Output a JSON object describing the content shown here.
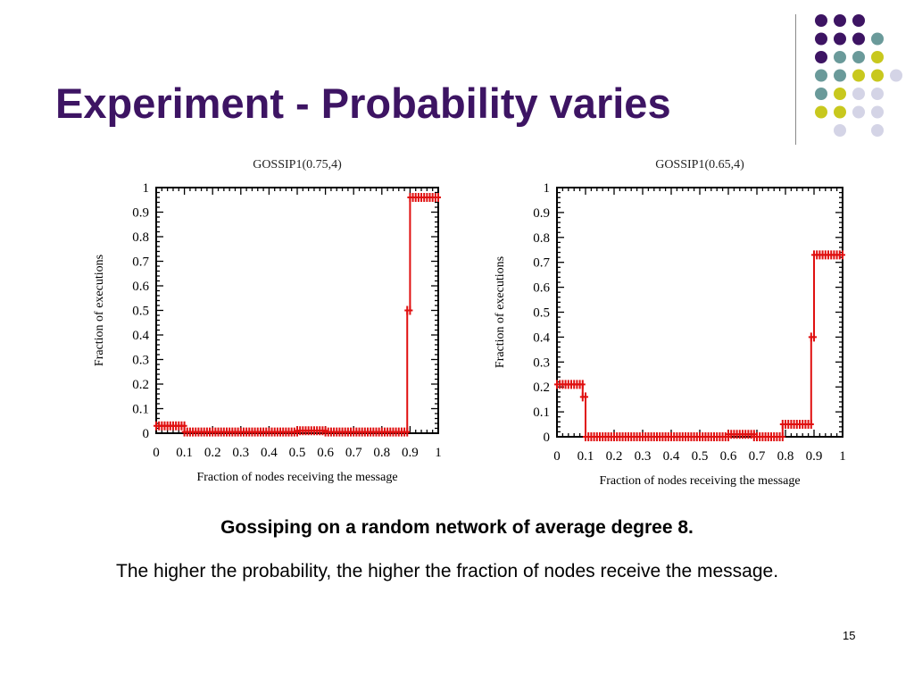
{
  "slide": {
    "title": "Experiment - Probability varies",
    "caption": "Gossiping on a random network of average degree 8.",
    "body": "The higher the probability, the higher the fraction of nodes receive the message.",
    "page_number": "15"
  },
  "colors": {
    "title": "#3d1463",
    "series": "#e01010",
    "dot_purple": "#3d1463",
    "dot_teal": "#6a9a9a",
    "dot_olive": "#c8c81e",
    "dot_lavender": "#d4d4e6"
  },
  "decoration": {
    "dot_grid": [
      [
        "purple",
        "purple",
        "purple",
        null
      ],
      [
        "purple",
        "purple",
        "purple",
        "teal"
      ],
      [
        "purple",
        "teal",
        "teal",
        "olive"
      ],
      [
        "teal",
        "teal",
        "olive",
        "olive",
        "lavender"
      ],
      [
        "teal",
        "olive",
        "lavender",
        "lavender"
      ],
      [
        "olive",
        "olive",
        "lavender",
        "lavender"
      ],
      [
        null,
        "lavender",
        null,
        "lavender"
      ]
    ]
  },
  "chart_data": [
    {
      "type": "line",
      "title": "GOSSIP1(0.75,4)",
      "xlabel": "Fraction of nodes receiving the  message",
      "ylabel": "Fraction of executions",
      "xlim": [
        0,
        1
      ],
      "ylim": [
        0,
        1
      ],
      "xticks": [
        "0",
        "0.1",
        "0.2",
        "0.3",
        "0.4",
        "0.5",
        "0.6",
        "0.7",
        "0.8",
        "0.9",
        "1"
      ],
      "yticks": [
        "0",
        "0.1",
        "0.2",
        "0.3",
        "0.4",
        "0.5",
        "0.6",
        "0.7",
        "0.8",
        "0.9",
        "1"
      ],
      "grid": false,
      "series": [
        {
          "x": [
            0,
            0.1,
            0.1,
            0.5,
            0.5,
            0.6,
            0.6,
            0.89,
            0.89,
            0.9,
            0.9,
            1
          ],
          "y": [
            0.03,
            0.03,
            0.005,
            0.005,
            0.01,
            0.01,
            0.005,
            0.005,
            0.5,
            0.5,
            0.96,
            0.96
          ]
        }
      ]
    },
    {
      "type": "line",
      "title": "GOSSIP1(0.65,4)",
      "xlabel": "Fraction of nodes receiving the  message",
      "ylabel": "Fraction  of executions",
      "xlim": [
        0,
        1
      ],
      "ylim": [
        0,
        1
      ],
      "xticks": [
        "0",
        "0.1",
        "0.2",
        "0.3",
        "0.4",
        "0.5",
        "0.6",
        "0.7",
        "0.8",
        "0.9",
        "1"
      ],
      "yticks": [
        "0",
        "0.1",
        "0.2",
        "0.3",
        "0.4",
        "0.5",
        "0.6",
        "0.7",
        "0.8",
        "0.9",
        "1"
      ],
      "grid": false,
      "series": [
        {
          "x": [
            0,
            0.09,
            0.09,
            0.1,
            0.1,
            0.6,
            0.6,
            0.69,
            0.69,
            0.79,
            0.79,
            0.89,
            0.89,
            0.9,
            0.9,
            1
          ],
          "y": [
            0.21,
            0.21,
            0.16,
            0.16,
            0.0,
            0.0,
            0.01,
            0.01,
            0.0,
            0.0,
            0.05,
            0.05,
            0.4,
            0.4,
            0.73,
            0.73
          ]
        }
      ]
    }
  ]
}
